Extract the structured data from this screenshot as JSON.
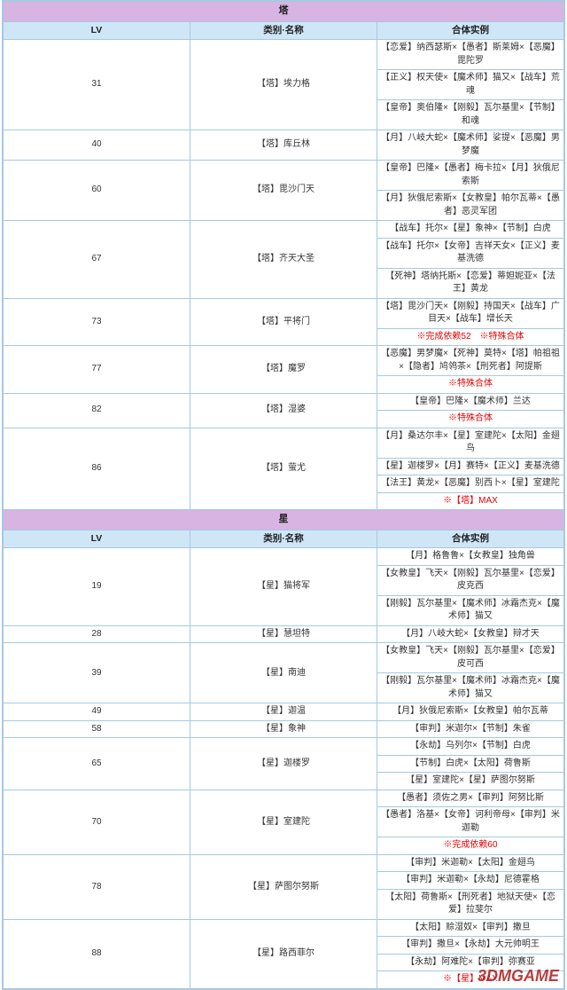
{
  "watermark_text": "3DMGAME",
  "sections": [
    {
      "header": "塔",
      "col_lv": "LV",
      "col_name": "类别·名称",
      "col_ex": "合体实例",
      "rows": [
        {
          "lv": "31",
          "name": "【塔】埃力格",
          "examples": [
            "【恋爱】纳西瑟斯×【愚者】斯莱姆×【恶魔】毘陀罗",
            "【正义】权天使×【魔术师】猫又×【战车】荒魂",
            "【皇帝】奥伯隆×【刚毅】瓦尔基里×【节制】和魂"
          ]
        },
        {
          "lv": "40",
          "name": "【塔】库丘林",
          "examples": [
            "【月】八岐大蛇×【魔术师】娑提×【恶魔】男梦魔"
          ]
        },
        {
          "lv": "60",
          "name": "【塔】毘沙门天",
          "examples": [
            "【皇帝】巴隆×【愚者】梅卡拉×【月】狄俄尼索斯",
            "【月】狄俄尼索斯×【女教皇】帕尔瓦蒂×【愚者】恶灵军团"
          ]
        },
        {
          "lv": "67",
          "name": "【塔】齐天大圣",
          "examples": [
            "【战车】托尔×【星】象神×【节制】白虎",
            "【战车】托尔×【女帝】吉祥天女×【正义】麦基洗德",
            "【死神】塔纳托斯×【恋爱】蒂妲妮亚×【法王】黄龙"
          ]
        },
        {
          "lv": "73",
          "name": "【塔】平将门",
          "examples": [
            "【塔】毘沙门天×【刚毅】持国天×【战车】广目天×【战车】增长天",
            {
              "text": "※完成依赖52　※特殊合体",
              "red": true
            }
          ]
        },
        {
          "lv": "77",
          "name": "【塔】魔罗",
          "examples": [
            "【恶魔】男梦魔×【死神】莫特×【塔】帕祖祖×【隐者】鸠鸰茶×【刑死者】阿提斯",
            {
              "text": "※特殊合体",
              "red": true
            }
          ]
        },
        {
          "lv": "82",
          "name": "【塔】湿婆",
          "examples": [
            "【皇帝】巴隆×【魔术师】兰达",
            {
              "text": "※特殊合体",
              "red": true
            }
          ]
        },
        {
          "lv": "86",
          "name": "【塔】萤尤",
          "examples": [
            "【月】桑达尔丰×【星】室建陀×【太阳】金翅鸟",
            "【星】迦楼罗×【月】赛特×【正义】麦基洗德",
            "【法王】黄龙×【恶魔】别西卜×【星】室建陀",
            {
              "text": "※【塔】MAX",
              "red": true
            }
          ]
        }
      ]
    },
    {
      "header": "星",
      "col_lv": "LV",
      "col_name": "类别·名称",
      "col_ex": "合体实例",
      "rows": [
        {
          "lv": "19",
          "name": "【星】猫将军",
          "examples": [
            "【月】格鲁鲁×【女教皇】独角兽",
            "【女教皇】飞天×【刚毅】瓦尔基里×【恋爱】皮克西",
            "【刚毅】瓦尔基里×【魔术师】冰霜杰克×【魔术师】猫又"
          ]
        },
        {
          "lv": "28",
          "name": "【星】慧坦特",
          "examples": [
            "【月】八岐大蛇×【女教皇】辩才天"
          ]
        },
        {
          "lv": "39",
          "name": "【星】南迪",
          "examples": [
            "【女教皇】飞天×【刚毅】瓦尔基里×【恋爱】皮可西",
            "【刚毅】瓦尔基里×【魔术师】冰霜杰克×【魔术师】猫又"
          ]
        },
        {
          "lv": "49",
          "name": "【星】迦温",
          "examples": [
            "【月】狄俄尼索斯×【女教皇】帕尔瓦蒂"
          ]
        },
        {
          "lv": "58",
          "name": "【星】象神",
          "examples": [
            "【审判】米迦尔×【节制】朱雀"
          ]
        },
        {
          "lv": "65",
          "name": "【星】迦楼罗",
          "examples": [
            "【永劫】乌列尔×【节制】白虎",
            "【节制】白虎×【太阳】荷鲁斯",
            "【星】室建陀×【星】萨图尔努斯"
          ]
        },
        {
          "lv": "70",
          "name": "【星】室建陀",
          "examples": [
            "【愚者】须佐之男×【审判】阿努比斯",
            "【愚者】洛基×【女帝】诃利帝母×【审判】米迦勒",
            {
              "text": "※完成依赖60",
              "red": true
            }
          ]
        },
        {
          "lv": "78",
          "name": "【星】萨图尔努斯",
          "examples": [
            "【审判】米迦勒×【太阳】金翅鸟",
            "【审判】米迦勒×【永劫】尼德霍格",
            "【太阳】荷鲁斯×【刑死者】地狱天使×【恋爱】拉斐尔"
          ]
        },
        {
          "lv": "88",
          "name": "【星】路西菲尔",
          "examples": [
            "【太阳】赊湿奴×【审判】撒旦",
            "【审判】撒旦×【永劫】大元帅明王",
            "【永劫】阿难陀×【审判】弥赛亚",
            {
              "text": "※【星】MAX",
              "red": true
            }
          ]
        }
      ]
    }
  ]
}
